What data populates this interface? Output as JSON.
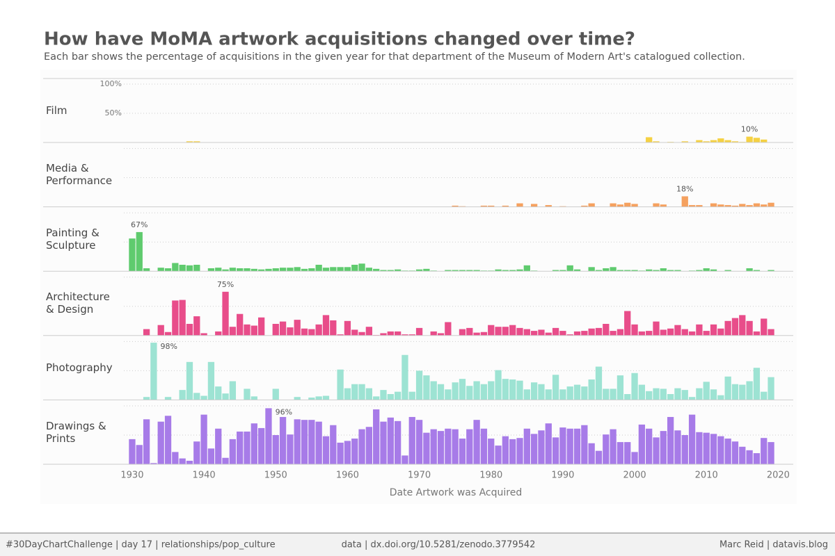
{
  "chart_data": {
    "type": "bar",
    "title": "How have MoMA artwork acquisitions changed over time?",
    "subtitle": "Each bar shows the percentage of acquisitions in the given year for that department of the Museum of Modern Art's catalogued collection.",
    "x_label": "Date Artwork was Acquired",
    "footer": {
      "left": "#30DayChartChallenge | day 17 | relationships/pop_culture",
      "center": "data | dx.doi.org/10.5281/zenodo.3779542",
      "right": "Marc Reid | datavis.blog"
    },
    "xlim": [
      1927,
      2022
    ],
    "xticks": [
      1930,
      1940,
      1950,
      1960,
      1970,
      1980,
      1990,
      2000,
      2010,
      2020
    ],
    "ylim": [
      0,
      110
    ],
    "yticks": [
      {
        "value": 50,
        "label": "50%"
      },
      {
        "value": 100,
        "label": "100%"
      }
    ],
    "grid": true,
    "x": [
      1930,
      1931,
      1932,
      1933,
      1934,
      1935,
      1936,
      1937,
      1938,
      1939,
      1940,
      1941,
      1942,
      1943,
      1944,
      1945,
      1946,
      1947,
      1948,
      1949,
      1950,
      1951,
      1952,
      1953,
      1954,
      1955,
      1956,
      1957,
      1958,
      1959,
      1960,
      1961,
      1962,
      1963,
      1964,
      1965,
      1966,
      1967,
      1968,
      1969,
      1970,
      1971,
      1972,
      1973,
      1974,
      1975,
      1976,
      1977,
      1978,
      1979,
      1980,
      1981,
      1982,
      1983,
      1984,
      1985,
      1986,
      1987,
      1988,
      1989,
      1990,
      1991,
      1992,
      1993,
      1994,
      1995,
      1996,
      1997,
      1998,
      1999,
      2000,
      2001,
      2002,
      2003,
      2004,
      2005,
      2006,
      2007,
      2008,
      2009,
      2010,
      2011,
      2012,
      2013,
      2014,
      2015,
      2016,
      2017,
      2018,
      2019
    ],
    "series": [
      {
        "name": "Film",
        "color": "#f5d142",
        "values": [
          0,
          0,
          0,
          0,
          0,
          0,
          0,
          0,
          2,
          2,
          0,
          0,
          0,
          0,
          0,
          0,
          0,
          0,
          0,
          0,
          0,
          0,
          0,
          0,
          0,
          0,
          0,
          0,
          0,
          0,
          0,
          0,
          0,
          0,
          0,
          0,
          0,
          0,
          0,
          0,
          0,
          0,
          0,
          0,
          0,
          0,
          0,
          0,
          0,
          0,
          0,
          0,
          0,
          0,
          0,
          0,
          0,
          0,
          0,
          0,
          0,
          0,
          0,
          0,
          0,
          0,
          0,
          0,
          0,
          0,
          0,
          0,
          9,
          2,
          0,
          1,
          0,
          2,
          0,
          4,
          2,
          4,
          7,
          4,
          2,
          1,
          10,
          8,
          5,
          0
        ],
        "value_labels": [
          null,
          null,
          null,
          null,
          null,
          null,
          null,
          null,
          null,
          null,
          null,
          null,
          null,
          null,
          null,
          null,
          null,
          null,
          null,
          null,
          null,
          null,
          null,
          null,
          null,
          null,
          null,
          null,
          null,
          null,
          null,
          null,
          null,
          null,
          null,
          null,
          null,
          null,
          null,
          null,
          null,
          null,
          null,
          null,
          null,
          null,
          null,
          null,
          null,
          null,
          null,
          null,
          null,
          null,
          null,
          null,
          null,
          null,
          null,
          null,
          null,
          null,
          null,
          null,
          null,
          null,
          null,
          null,
          null,
          null,
          null,
          null,
          null,
          null,
          null,
          null,
          null,
          null,
          null,
          null,
          null,
          null,
          null,
          null,
          null,
          null,
          "10%",
          null,
          null,
          null
        ]
      },
      {
        "name": "Media & Performance",
        "color": "#f5a15f",
        "values": [
          0,
          0,
          0,
          0,
          0,
          0,
          0,
          0,
          0,
          0,
          0,
          0,
          0,
          0,
          0,
          0,
          0,
          0,
          0,
          0,
          0,
          0,
          0,
          0,
          0,
          0,
          0,
          0,
          0,
          0,
          0,
          0,
          0,
          0,
          0,
          0,
          0,
          0,
          0,
          0,
          0,
          0,
          0,
          0,
          0,
          2,
          1,
          0,
          0,
          2,
          2,
          0,
          2,
          0,
          6,
          0,
          5,
          0,
          3,
          0,
          1,
          0,
          0,
          2,
          6,
          0,
          0,
          6,
          4,
          7,
          5,
          0,
          0,
          6,
          4,
          0,
          0,
          18,
          3,
          3,
          0,
          6,
          4,
          3,
          2,
          5,
          3,
          6,
          4,
          7
        ],
        "value_labels": [
          null,
          null,
          null,
          null,
          null,
          null,
          null,
          null,
          null,
          null,
          null,
          null,
          null,
          null,
          null,
          null,
          null,
          null,
          null,
          null,
          null,
          null,
          null,
          null,
          null,
          null,
          null,
          null,
          null,
          null,
          null,
          null,
          null,
          null,
          null,
          null,
          null,
          null,
          null,
          null,
          null,
          null,
          null,
          null,
          null,
          null,
          null,
          null,
          null,
          null,
          null,
          null,
          null,
          null,
          null,
          null,
          null,
          null,
          null,
          null,
          null,
          null,
          null,
          null,
          null,
          null,
          null,
          null,
          null,
          null,
          null,
          null,
          null,
          null,
          null,
          null,
          null,
          "18%",
          null,
          null,
          null,
          null,
          null,
          null,
          null,
          null,
          null,
          null,
          null,
          null
        ]
      },
      {
        "name": "Painting & Sculpture",
        "color": "#5fcb6e",
        "values": [
          56,
          67,
          5,
          0,
          6,
          5,
          14,
          11,
          10,
          11,
          0,
          5,
          6,
          3,
          6,
          5,
          5,
          4,
          3,
          4,
          5,
          6,
          6,
          7,
          4,
          5,
          11,
          6,
          7,
          7,
          7,
          11,
          13,
          6,
          4,
          2,
          2,
          3,
          1,
          1,
          3,
          4,
          1,
          0,
          2,
          2,
          2,
          2,
          2,
          1,
          1,
          3,
          2,
          2,
          3,
          10,
          1,
          0,
          0,
          2,
          2,
          10,
          3,
          0,
          7,
          2,
          5,
          7,
          2,
          2,
          2,
          1,
          3,
          2,
          5,
          2,
          2,
          0,
          1,
          2,
          5,
          3,
          0,
          2,
          0,
          0,
          5,
          2,
          0,
          2
        ],
        "value_labels": [
          null,
          "67%",
          null,
          null,
          null,
          null,
          null,
          null,
          null,
          null,
          null,
          null,
          null,
          null,
          null,
          null,
          null,
          null,
          null,
          null,
          null,
          null,
          null,
          null,
          null,
          null,
          null,
          null,
          null,
          null,
          null,
          null,
          null,
          null,
          null,
          null,
          null,
          null,
          null,
          null,
          null,
          null,
          null,
          null,
          null,
          null,
          null,
          null,
          null,
          null,
          null,
          null,
          null,
          null,
          null,
          null,
          null,
          null,
          null,
          null,
          null,
          null,
          null,
          null,
          null,
          null,
          null,
          null,
          null,
          null,
          null,
          null,
          null,
          null,
          null,
          null,
          null,
          null,
          null,
          null,
          null,
          null,
          null,
          null,
          null,
          null,
          null,
          null,
          null,
          null
        ]
      },
      {
        "name": "Architecture & Design",
        "color": "#e84d8a",
        "values": [
          0,
          0,
          11,
          0,
          18,
          6,
          60,
          61,
          20,
          33,
          4,
          0,
          7,
          75,
          15,
          37,
          19,
          17,
          31,
          0,
          20,
          24,
          14,
          27,
          12,
          11,
          19,
          35,
          26,
          2,
          25,
          10,
          6,
          15,
          1,
          4,
          7,
          7,
          2,
          2,
          13,
          0,
          7,
          4,
          23,
          0,
          11,
          13,
          5,
          6,
          18,
          15,
          15,
          18,
          13,
          11,
          8,
          10,
          5,
          13,
          8,
          2,
          7,
          8,
          12,
          13,
          20,
          8,
          11,
          42,
          19,
          7,
          8,
          24,
          10,
          12,
          18,
          11,
          7,
          19,
          8,
          19,
          12,
          25,
          30,
          35,
          25,
          7,
          29,
          11
        ],
        "value_labels": [
          null,
          null,
          null,
          null,
          null,
          null,
          null,
          null,
          null,
          null,
          null,
          null,
          null,
          "75%",
          null,
          null,
          null,
          null,
          null,
          null,
          null,
          null,
          null,
          null,
          null,
          null,
          null,
          null,
          null,
          null,
          null,
          null,
          null,
          null,
          null,
          null,
          null,
          null,
          null,
          null,
          null,
          null,
          null,
          null,
          null,
          null,
          null,
          null,
          null,
          null,
          null,
          null,
          null,
          null,
          null,
          null,
          null,
          null,
          null,
          null,
          null,
          null,
          null,
          null,
          null,
          null,
          null,
          null,
          null,
          null,
          null,
          null,
          null,
          null,
          null,
          null,
          null,
          null,
          null,
          null,
          null,
          null,
          null,
          null,
          null,
          null,
          null,
          null,
          null,
          null
        ]
      },
      {
        "name": "Photography",
        "color": "#9de3d3",
        "values": [
          0,
          0,
          5,
          98,
          0,
          5,
          0,
          17,
          65,
          12,
          7,
          65,
          23,
          11,
          32,
          0,
          19,
          6,
          0,
          0,
          19,
          0,
          0,
          5,
          0,
          4,
          6,
          7,
          0,
          52,
          20,
          27,
          27,
          20,
          6,
          17,
          10,
          14,
          77,
          14,
          50,
          42,
          32,
          27,
          18,
          30,
          36,
          24,
          32,
          27,
          32,
          51,
          36,
          35,
          33,
          18,
          30,
          27,
          18,
          43,
          18,
          23,
          26,
          23,
          35,
          57,
          19,
          19,
          42,
          10,
          46,
          26,
          15,
          20,
          19,
          10,
          20,
          17,
          5,
          20,
          31,
          18,
          8,
          40,
          27,
          26,
          32,
          55,
          14,
          39
        ],
        "value_labels": [
          null,
          null,
          null,
          "98%",
          null,
          null,
          null,
          null,
          null,
          null,
          null,
          null,
          null,
          null,
          null,
          null,
          null,
          null,
          null,
          null,
          null,
          null,
          null,
          null,
          null,
          null,
          null,
          null,
          null,
          null,
          null,
          null,
          null,
          null,
          null,
          null,
          null,
          null,
          null,
          null,
          null,
          null,
          null,
          null,
          null,
          null,
          null,
          null,
          null,
          null,
          null,
          null,
          null,
          null,
          null,
          null,
          null,
          null,
          null,
          null,
          null,
          null,
          null,
          null,
          null,
          null,
          null,
          null,
          null,
          null,
          null,
          null,
          null,
          null,
          null,
          null,
          null,
          null,
          null,
          null,
          null,
          null,
          null,
          null,
          null,
          null,
          null,
          null,
          null,
          null
        ]
      },
      {
        "name": "Drawings & Prints",
        "color": "#a77be8",
        "values": [
          43,
          33,
          77,
          2,
          73,
          83,
          21,
          10,
          6,
          39,
          85,
          27,
          61,
          11,
          43,
          56,
          56,
          70,
          62,
          96,
          50,
          81,
          51,
          77,
          76,
          76,
          73,
          48,
          67,
          37,
          40,
          44,
          60,
          64,
          94,
          73,
          80,
          74,
          15,
          81,
          76,
          54,
          60,
          57,
          61,
          60,
          44,
          60,
          76,
          61,
          44,
          32,
          48,
          43,
          45,
          61,
          52,
          58,
          70,
          46,
          63,
          61,
          61,
          67,
          36,
          23,
          51,
          60,
          38,
          38,
          21,
          68,
          61,
          46,
          57,
          81,
          58,
          50,
          85,
          55,
          54,
          52,
          48,
          44,
          39,
          30,
          24,
          19,
          45,
          38
        ],
        "value_labels": [
          null,
          null,
          null,
          null,
          null,
          null,
          null,
          null,
          null,
          null,
          null,
          null,
          null,
          null,
          null,
          null,
          null,
          null,
          null,
          "96%",
          null,
          null,
          null,
          null,
          null,
          null,
          null,
          null,
          null,
          null,
          null,
          null,
          null,
          null,
          null,
          null,
          null,
          null,
          null,
          null,
          null,
          null,
          null,
          null,
          null,
          null,
          null,
          null,
          null,
          null,
          null,
          null,
          null,
          null,
          null,
          null,
          null,
          null,
          null,
          null,
          null,
          null,
          null,
          null,
          null,
          null,
          null,
          null,
          null,
          null,
          null,
          null,
          null,
          null,
          null,
          null,
          null,
          null,
          null,
          null,
          null,
          null,
          null,
          null,
          null,
          null,
          null,
          null,
          null,
          null
        ]
      }
    ]
  }
}
